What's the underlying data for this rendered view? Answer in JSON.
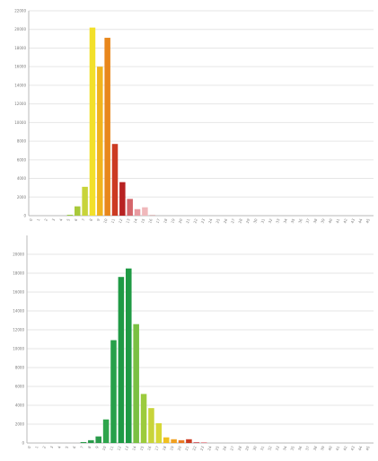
{
  "chart_data": [
    {
      "type": "bar",
      "title": "",
      "xlabel": "",
      "ylabel": "",
      "ylim": [
        0,
        22000
      ],
      "yticks": [
        0,
        2000,
        4000,
        6000,
        8000,
        10000,
        12000,
        14000,
        16000,
        18000,
        20000,
        22000
      ],
      "grid": true,
      "legend": "none",
      "categories": [
        "0",
        "1",
        "2",
        "3",
        "4",
        "5",
        "6",
        "7",
        "8",
        "9",
        "10",
        "11",
        "12",
        "13",
        "14",
        "15",
        "16",
        "17",
        "18",
        "19",
        "20",
        "21",
        "22",
        "23",
        "24",
        "25",
        "26",
        "27",
        "28",
        "29",
        "30",
        "31",
        "32",
        "33",
        "34",
        "35",
        "36",
        "37",
        "38",
        "39",
        "40",
        "41",
        "42",
        "43",
        "44",
        "45"
      ],
      "values": [
        0,
        0,
        0,
        0,
        0,
        100,
        1000,
        3100,
        20200,
        16000,
        19100,
        7700,
        3600,
        1800,
        700,
        900,
        100,
        0,
        0,
        0,
        0,
        0,
        0,
        0,
        0,
        0,
        0,
        0,
        0,
        0,
        0,
        0,
        0,
        0,
        0,
        0,
        0,
        0,
        0,
        0,
        0,
        0,
        0,
        0,
        0,
        0
      ],
      "colors": [
        "#cfd1c2",
        "#cfd1c2",
        "#cfd1c2",
        "#cfd1c2",
        "#cfd1c2",
        "#9bcf4a",
        "#a8c93a",
        "#c8d43a",
        "#f2e02a",
        "#f0b31e",
        "#e8871c",
        "#cc3b22",
        "#b82222",
        "#d4656a",
        "#e89aa0",
        "#f0b8bb",
        "#e0c0c0",
        "#cfd1c2",
        "#cfd1c2",
        "#cfd1c2",
        "#cfd1c2",
        "#cfd1c2",
        "#cfd1c2",
        "#cfd1c2",
        "#cfd1c2",
        "#cfd1c2",
        "#cfd1c2",
        "#cfd1c2",
        "#cfd1c2",
        "#cfd1c2",
        "#cfd1c2",
        "#cfd1c2",
        "#cfd1c2",
        "#cfd1c2",
        "#cfd1c2",
        "#cfd1c2",
        "#cfd1c2",
        "#cfd1c2",
        "#cfd1c2",
        "#cfd1c2",
        "#cfd1c2",
        "#cfd1c2",
        "#cfd1c2",
        "#cfd1c2",
        "#cfd1c2",
        "#cfd1c2"
      ]
    },
    {
      "type": "bar",
      "title": "",
      "xlabel": "",
      "ylabel": "",
      "ylim": [
        0,
        22000
      ],
      "yticks": [
        0,
        2000,
        4000,
        6000,
        8000,
        10000,
        12000,
        14000,
        16000,
        18000,
        20000
      ],
      "grid": true,
      "legend": "none",
      "categories": [
        "0",
        "1",
        "2",
        "3",
        "4",
        "5",
        "6",
        "7",
        "8",
        "9",
        "10",
        "11",
        "12",
        "13",
        "14",
        "15",
        "16",
        "17",
        "18",
        "19",
        "20",
        "21",
        "22",
        "23",
        "24",
        "25",
        "26",
        "27",
        "28",
        "29",
        "30",
        "31",
        "32",
        "33",
        "34",
        "35",
        "36",
        "37",
        "38",
        "39",
        "40",
        "41",
        "42",
        "43",
        "44",
        "45"
      ],
      "values": [
        0,
        0,
        0,
        0,
        0,
        0,
        0,
        100,
        300,
        700,
        2500,
        10900,
        17600,
        18500,
        12600,
        5200,
        3700,
        2100,
        600,
        400,
        300,
        400,
        100,
        100,
        0,
        0,
        0,
        0,
        0,
        0,
        0,
        0,
        0,
        0,
        0,
        0,
        0,
        0,
        0,
        0,
        0,
        0,
        0,
        0,
        0,
        0
      ],
      "colors": [
        "#cfd1c2",
        "#cfd1c2",
        "#cfd1c2",
        "#cfd1c2",
        "#cfd1c2",
        "#cfd1c2",
        "#cfd1c2",
        "#2a9b4a",
        "#2a9b4a",
        "#2a9b4a",
        "#2ea54c",
        "#27a04a",
        "#1f9a44",
        "#1f9a44",
        "#7ac043",
        "#9ccb3d",
        "#c8d43a",
        "#d6d836",
        "#f0c020",
        "#f0a020",
        "#e87a24",
        "#cc3b22",
        "#d4656a",
        "#e89aa0",
        "#cfd1c2",
        "#cfd1c2",
        "#cfd1c2",
        "#cfd1c2",
        "#cfd1c2",
        "#cfd1c2",
        "#cfd1c2",
        "#cfd1c2",
        "#cfd1c2",
        "#cfd1c2",
        "#cfd1c2",
        "#cfd1c2",
        "#cfd1c2",
        "#cfd1c2",
        "#cfd1c2",
        "#cfd1c2",
        "#cfd1c2",
        "#cfd1c2",
        "#cfd1c2",
        "#cfd1c2",
        "#cfd1c2",
        "#cfd1c2"
      ]
    }
  ]
}
